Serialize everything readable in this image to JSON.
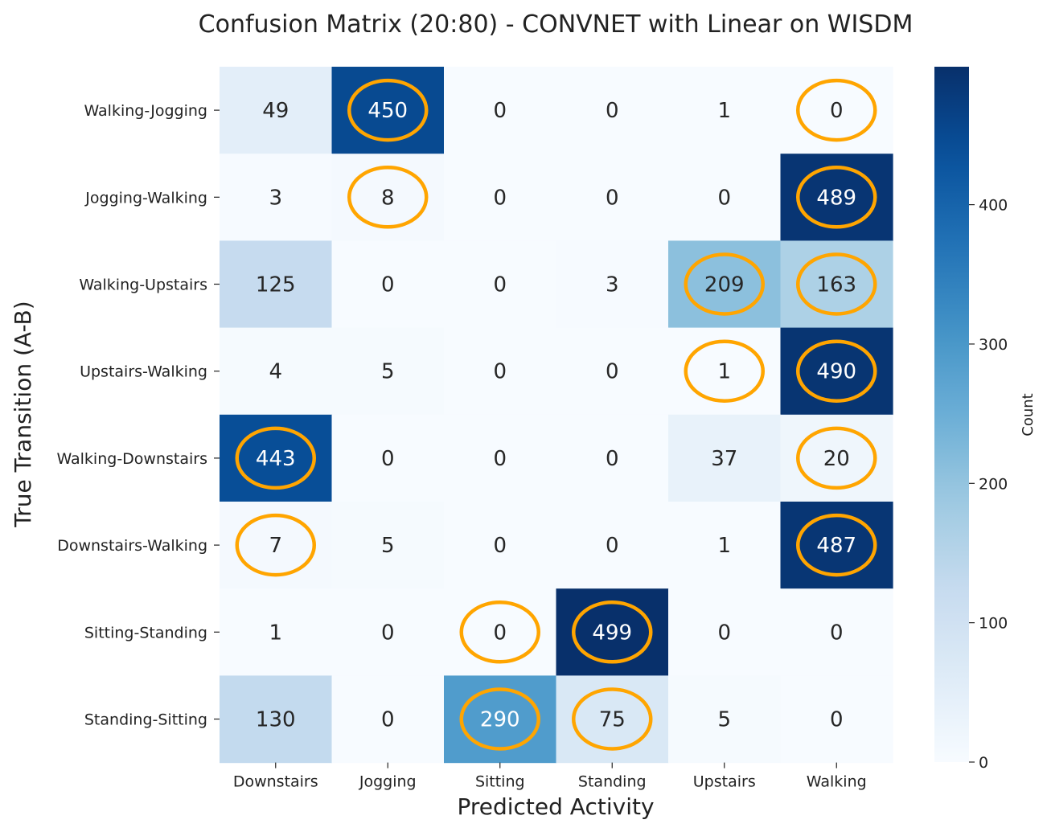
{
  "chart_data": {
    "type": "heatmap",
    "title": "Confusion Matrix (20:80) - CONVNET with Linear on WISDM",
    "xlabel": "Predicted Activity",
    "ylabel": "True Transition (A-B)",
    "x_categories": [
      "Downstairs",
      "Jogging",
      "Sitting",
      "Standing",
      "Upstairs",
      "Walking"
    ],
    "y_categories": [
      "Walking-Jogging",
      "Jogging-Walking",
      "Walking-Upstairs",
      "Upstairs-Walking",
      "Walking-Downstairs",
      "Downstairs-Walking",
      "Sitting-Standing",
      "Standing-Sitting"
    ],
    "values": [
      [
        49,
        450,
        0,
        0,
        1,
        0
      ],
      [
        3,
        8,
        0,
        0,
        0,
        489
      ],
      [
        125,
        0,
        0,
        3,
        209,
        163
      ],
      [
        4,
        5,
        0,
        0,
        1,
        490
      ],
      [
        443,
        0,
        0,
        0,
        37,
        20
      ],
      [
        7,
        5,
        0,
        0,
        1,
        487
      ],
      [
        1,
        0,
        0,
        499,
        0,
        0
      ],
      [
        130,
        0,
        290,
        75,
        5,
        0
      ]
    ],
    "highlighted_cells": [
      [
        0,
        1
      ],
      [
        0,
        5
      ],
      [
        1,
        1
      ],
      [
        1,
        5
      ],
      [
        2,
        4
      ],
      [
        2,
        5
      ],
      [
        3,
        4
      ],
      [
        3,
        5
      ],
      [
        4,
        0
      ],
      [
        4,
        5
      ],
      [
        5,
        0
      ],
      [
        5,
        5
      ],
      [
        6,
        2
      ],
      [
        6,
        3
      ],
      [
        7,
        2
      ],
      [
        7,
        3
      ]
    ],
    "highlight_color": "#FFA500",
    "colormap": "Blues",
    "vmin": 0,
    "vmax": 499,
    "colorbar": {
      "label": "Count",
      "ticks": [
        0,
        100,
        200,
        300,
        400
      ]
    }
  }
}
